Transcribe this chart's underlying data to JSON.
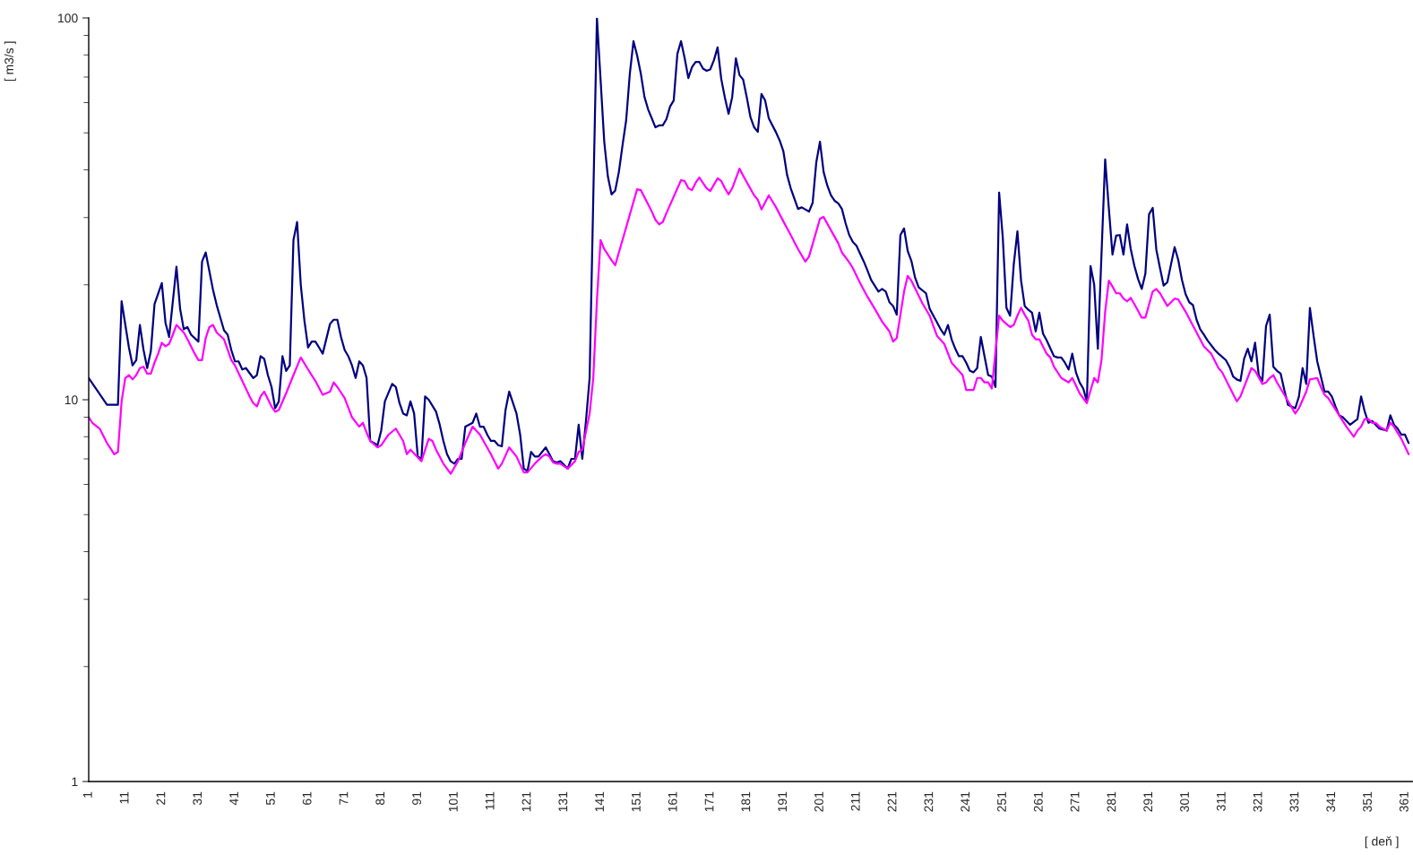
{
  "chart_data": {
    "type": "line",
    "xlabel": "[ deň ]",
    "ylabel": "[ m3/s ]",
    "log": "y",
    "grid": false,
    "marker": "none",
    "line_style": "solid",
    "xlim": [
      1,
      363
    ],
    "xticks": [
      1,
      11,
      21,
      31,
      41,
      51,
      61,
      71,
      81,
      91,
      101,
      111,
      121,
      131,
      141,
      151,
      161,
      171,
      181,
      191,
      201,
      211,
      221,
      231,
      241,
      251,
      261,
      271,
      281,
      291,
      301,
      311,
      321,
      331,
      341,
      351,
      361
    ],
    "ylim": [
      1,
      100
    ],
    "yticks": [
      1,
      10,
      100
    ],
    "series": [
      {
        "color": "#000080",
        "x": [
          1,
          6,
          9,
          10,
          12,
          13,
          14,
          15,
          16,
          17,
          18,
          19,
          21,
          22,
          23,
          25,
          26,
          27,
          28,
          29,
          31,
          32,
          33,
          35,
          36,
          37,
          38,
          39,
          40,
          41,
          42,
          43,
          44,
          46,
          47,
          48,
          49,
          50,
          51,
          52,
          53,
          54,
          55,
          56,
          57,
          58,
          59,
          60,
          61,
          62,
          63,
          64,
          65,
          67,
          68,
          69,
          70,
          71,
          72,
          73,
          74,
          75,
          76,
          77,
          78,
          80,
          81,
          82,
          84,
          85,
          86,
          87,
          88,
          89,
          90,
          91,
          92,
          93,
          94,
          96,
          97,
          98,
          99,
          100,
          101,
          102,
          103,
          104,
          105,
          106,
          107,
          108,
          109,
          110,
          111,
          112,
          113,
          114,
          115,
          116,
          118,
          119,
          120,
          121,
          122,
          123,
          124,
          125,
          126,
          127,
          128,
          129,
          130,
          132,
          133,
          134,
          135,
          136,
          137,
          138,
          140,
          142,
          143,
          144,
          145,
          146,
          147,
          148,
          149,
          150,
          151,
          152,
          153,
          154,
          155,
          156,
          157,
          158,
          159,
          160,
          161,
          162,
          163,
          164,
          165,
          166,
          167,
          168,
          169,
          170,
          171,
          172,
          173,
          174,
          175,
          176,
          177,
          178,
          179,
          180,
          181,
          182,
          183,
          184,
          185,
          186,
          187,
          189,
          190,
          191,
          192,
          193,
          195,
          196,
          198,
          199,
          200,
          201,
          202,
          203,
          204,
          205,
          206,
          207,
          208,
          209,
          210,
          211,
          212,
          213,
          214,
          215,
          217,
          218,
          219,
          220,
          221,
          222,
          223,
          224,
          225,
          226,
          227,
          228,
          230,
          231,
          234,
          235,
          236,
          237,
          238,
          239,
          240,
          241,
          242,
          243,
          244,
          245,
          246,
          247,
          248,
          249,
          250,
          251,
          252,
          253,
          254,
          255,
          256,
          257,
          258,
          259,
          260,
          261,
          262,
          263,
          265,
          266,
          267,
          268,
          269,
          270,
          271,
          272,
          273,
          274,
          275,
          276,
          277,
          279,
          280,
          281,
          282,
          283,
          284,
          285,
          286,
          287,
          288,
          289,
          290,
          291,
          292,
          293,
          294,
          295,
          296,
          297,
          298,
          299,
          300,
          301,
          302,
          303,
          304,
          305,
          306,
          307,
          309,
          310,
          312,
          313,
          314,
          315,
          316,
          317,
          318,
          319,
          320,
          321,
          322,
          323,
          324,
          325,
          326,
          327,
          328,
          329,
          331,
          332,
          333,
          334,
          335,
          336,
          337,
          339,
          340,
          341,
          342,
          343,
          344,
          346,
          348,
          349,
          350,
          351,
          352,
          353,
          354,
          356,
          357,
          358,
          359,
          360,
          361,
          362
        ],
        "values": [
          11.4,
          9.7,
          9.7,
          18.1,
          13.7,
          12.3,
          12.7,
          15.7,
          13.5,
          12.1,
          13.4,
          17.8,
          20.2,
          15.9,
          14.6,
          22.3,
          17.3,
          15.3,
          15.5,
          14.8,
          14.2,
          23.0,
          24.3,
          19.4,
          17.7,
          16.4,
          15.2,
          14.8,
          13.5,
          12.6,
          12.6,
          12.0,
          12.1,
          11.4,
          11.6,
          13.0,
          12.8,
          11.6,
          10.8,
          9.5,
          9.9,
          13.0,
          11.9,
          12.3,
          26.2,
          29.2,
          20.0,
          16.1,
          13.7,
          14.2,
          14.2,
          13.7,
          13.2,
          15.8,
          16.2,
          16.2,
          14.6,
          13.5,
          13.0,
          12.3,
          11.4,
          12.6,
          12.3,
          11.4,
          7.8,
          7.6,
          8.3,
          9.9,
          11.0,
          10.8,
          9.8,
          9.2,
          9.1,
          9.9,
          9.2,
          7.1,
          7.0,
          10.2,
          10.0,
          9.3,
          8.6,
          7.8,
          7.2,
          6.9,
          6.8,
          7.0,
          7.0,
          8.5,
          8.6,
          8.7,
          9.2,
          8.5,
          8.5,
          8.1,
          7.8,
          7.8,
          7.6,
          7.55,
          9.4,
          10.5,
          9.2,
          8.1,
          6.6,
          6.5,
          7.3,
          7.1,
          7.1,
          7.3,
          7.5,
          7.2,
          6.9,
          6.85,
          6.9,
          6.6,
          7.0,
          7.0,
          8.6,
          7.0,
          8.8,
          11.4,
          100,
          47.4,
          38.4,
          34.5,
          35.3,
          39.5,
          46.4,
          54.0,
          71.5,
          86.9,
          79.7,
          71.5,
          62.1,
          57.6,
          54.6,
          51.7,
          52.3,
          52.3,
          54.3,
          58.6,
          60.8,
          80.5,
          86.9,
          78.4,
          69.6,
          74.3,
          76.7,
          76.7,
          73.7,
          72.7,
          73.3,
          77.5,
          83.7,
          69.2,
          61.8,
          56.1,
          62.1,
          78.4,
          70.8,
          68.9,
          61.8,
          54.9,
          51.7,
          50.3,
          63.2,
          60.8,
          54.6,
          50.1,
          47.7,
          44.7,
          38.8,
          35.8,
          31.6,
          31.9,
          31.1,
          32.8,
          41.9,
          47.4,
          39.5,
          36.4,
          34.3,
          33.2,
          32.7,
          31.6,
          29.0,
          27.0,
          25.9,
          25.3,
          24.1,
          23.0,
          21.8,
          20.6,
          19.2,
          19.5,
          19.2,
          18.0,
          17.6,
          16.7,
          27.0,
          28.1,
          24.5,
          23.1,
          20.9,
          19.7,
          19.0,
          17.3,
          15.3,
          14.8,
          15.7,
          14.4,
          13.6,
          13.0,
          13.0,
          12.5,
          11.9,
          11.8,
          12.1,
          14.6,
          13.0,
          11.6,
          11.5,
          10.8,
          34.9,
          26.6,
          17.4,
          16.6,
          22.6,
          27.6,
          20.5,
          17.6,
          17.2,
          16.9,
          15.1,
          16.9,
          14.9,
          14.3,
          13.0,
          12.9,
          12.9,
          12.5,
          12.0,
          13.2,
          11.8,
          11.1,
          10.7,
          9.9,
          22.4,
          20.0,
          13.6,
          42.6,
          31.8,
          24.0,
          26.9,
          27.0,
          24.0,
          28.8,
          24.8,
          22.4,
          20.7,
          19.5,
          21.4,
          30.6,
          31.8,
          24.7,
          22.1,
          19.9,
          20.3,
          22.6,
          25.1,
          23.2,
          20.6,
          18.9,
          18.0,
          17.7,
          16.2,
          15.3,
          14.8,
          14.3,
          13.5,
          13.2,
          12.7,
          12.2,
          11.5,
          11.3,
          11.2,
          12.8,
          13.6,
          12.6,
          14.1,
          11.6,
          11.2,
          15.6,
          16.7,
          12.2,
          11.9,
          11.7,
          10.6,
          9.7,
          9.5,
          10.2,
          12.1,
          11.0,
          17.4,
          14.7,
          12.6,
          10.5,
          10.5,
          10.2,
          9.6,
          9.1,
          9.0,
          8.6,
          8.9,
          10.2,
          9.3,
          8.7,
          8.8,
          8.6,
          8.4,
          8.3,
          9.1,
          8.6,
          8.4,
          8.1,
          8.1,
          7.7
        ]
      },
      {
        "color": "#ff00ff",
        "x": [
          1,
          2,
          4,
          6,
          8,
          9,
          10,
          11,
          12,
          13,
          14,
          15,
          16,
          17,
          18,
          19,
          20,
          21,
          22,
          23,
          24,
          25,
          27,
          28,
          30,
          31,
          32,
          33,
          34,
          35,
          36,
          38,
          40,
          41,
          43,
          45,
          46,
          47,
          48,
          49,
          51,
          52,
          53,
          55,
          57,
          59,
          61,
          63,
          65,
          67,
          68,
          69,
          71,
          73,
          75,
          76,
          77,
          78,
          80,
          81,
          83,
          85,
          87,
          88,
          89,
          92,
          94,
          95,
          96,
          98,
          100,
          102,
          104,
          106,
          108,
          111,
          113,
          114,
          116,
          118,
          120,
          121,
          123,
          125,
          126,
          127,
          128,
          129,
          130,
          132,
          134,
          135,
          136,
          138,
          139,
          140,
          141,
          142,
          144,
          145,
          146,
          147,
          150,
          151,
          152,
          154,
          155,
          156,
          157,
          158,
          159,
          163,
          164,
          165,
          166,
          167,
          168,
          170,
          171,
          173,
          174,
          175,
          176,
          177,
          179,
          180,
          183,
          184,
          185,
          187,
          189,
          191,
          193,
          195,
          197,
          198,
          200,
          201,
          202,
          204,
          206,
          207,
          209,
          210,
          212,
          214,
          216,
          218,
          220,
          221,
          222,
          224,
          225,
          226,
          229,
          231,
          232,
          233,
          235,
          237,
          240,
          241,
          243,
          244,
          245,
          246,
          247,
          248,
          250,
          251,
          253,
          254,
          255,
          256,
          257,
          258,
          259,
          260,
          261,
          263,
          264,
          265,
          267,
          269,
          270,
          271,
          272,
          274,
          276,
          277,
          278,
          279,
          280,
          281,
          282,
          283,
          284,
          285,
          286,
          288,
          289,
          290,
          292,
          293,
          294,
          296,
          298,
          299,
          301,
          302,
          304,
          306,
          308,
          310,
          311,
          313,
          315,
          316,
          319,
          320,
          322,
          323,
          324,
          325,
          326,
          328,
          331,
          332,
          334,
          335,
          337,
          338,
          339,
          340,
          343,
          345,
          347,
          348,
          349,
          350,
          351,
          352,
          353,
          354,
          356,
          357,
          358,
          360,
          362
        ],
        "values": [
          9.0,
          8.7,
          8.4,
          7.7,
          7.2,
          7.3,
          9.9,
          11.4,
          11.6,
          11.3,
          11.6,
          12.1,
          12.2,
          11.7,
          11.7,
          12.5,
          13.2,
          14.1,
          13.8,
          14.0,
          14.8,
          15.7,
          15.0,
          14.4,
          13.2,
          12.7,
          12.7,
          14.5,
          15.5,
          15.7,
          15.0,
          14.4,
          12.7,
          12.3,
          11.2,
          10.2,
          9.8,
          9.6,
          10.2,
          10.5,
          9.6,
          9.3,
          9.4,
          10.4,
          11.6,
          12.9,
          12.0,
          11.2,
          10.3,
          10.5,
          11.1,
          10.8,
          10.1,
          9.0,
          8.5,
          8.7,
          8.2,
          7.8,
          7.5,
          7.6,
          8.1,
          8.4,
          7.8,
          7.2,
          7.4,
          6.9,
          7.9,
          7.8,
          7.4,
          6.8,
          6.4,
          6.9,
          7.7,
          8.5,
          8.1,
          7.2,
          6.6,
          6.8,
          7.5,
          7.1,
          6.45,
          6.45,
          6.8,
          7.1,
          7.2,
          7.1,
          6.85,
          6.8,
          6.8,
          6.6,
          6.9,
          7.3,
          7.4,
          9.2,
          11.4,
          18.2,
          26.2,
          24.8,
          23.2,
          22.5,
          24.3,
          26.2,
          33.0,
          35.6,
          35.4,
          32.5,
          31.1,
          29.6,
          28.8,
          29.2,
          30.8,
          37.6,
          37.4,
          35.8,
          35.4,
          37.0,
          38.2,
          35.8,
          35.2,
          38.0,
          37.4,
          35.8,
          34.5,
          35.8,
          40.3,
          38.6,
          34.3,
          33.4,
          31.5,
          34.3,
          31.9,
          29.3,
          27.0,
          24.8,
          23.0,
          23.7,
          27.6,
          29.8,
          30.1,
          27.8,
          25.7,
          24.3,
          22.9,
          22.1,
          20.2,
          18.6,
          17.3,
          16.0,
          15.1,
          14.2,
          14.5,
          19.2,
          21.1,
          20.5,
          17.9,
          16.6,
          15.6,
          14.7,
          14.0,
          12.5,
          11.6,
          10.6,
          10.6,
          11.4,
          11.4,
          11.1,
          11.1,
          10.7,
          16.6,
          16.1,
          15.5,
          15.7,
          16.6,
          17.4,
          16.7,
          16.1,
          14.8,
          14.4,
          14.4,
          13.2,
          12.9,
          12.2,
          11.4,
          11.1,
          11.4,
          10.9,
          10.4,
          9.8,
          11.4,
          11.1,
          12.7,
          17.0,
          20.5,
          19.8,
          19.0,
          19.0,
          18.4,
          18.1,
          18.5,
          17.1,
          16.4,
          16.4,
          19.2,
          19.5,
          19.0,
          17.6,
          18.4,
          18.3,
          17.0,
          16.3,
          15.0,
          13.8,
          13.2,
          12.1,
          11.8,
          10.8,
          9.9,
          10.2,
          12.1,
          11.9,
          11.0,
          11.1,
          11.4,
          11.6,
          11.1,
          10.3,
          9.2,
          9.5,
          10.5,
          11.3,
          11.4,
          10.8,
          10.3,
          10.1,
          9.1,
          8.5,
          8.0,
          8.3,
          8.5,
          8.9,
          8.9,
          8.7,
          8.7,
          8.5,
          8.3,
          8.7,
          8.5,
          7.9,
          7.2
        ]
      }
    ]
  }
}
